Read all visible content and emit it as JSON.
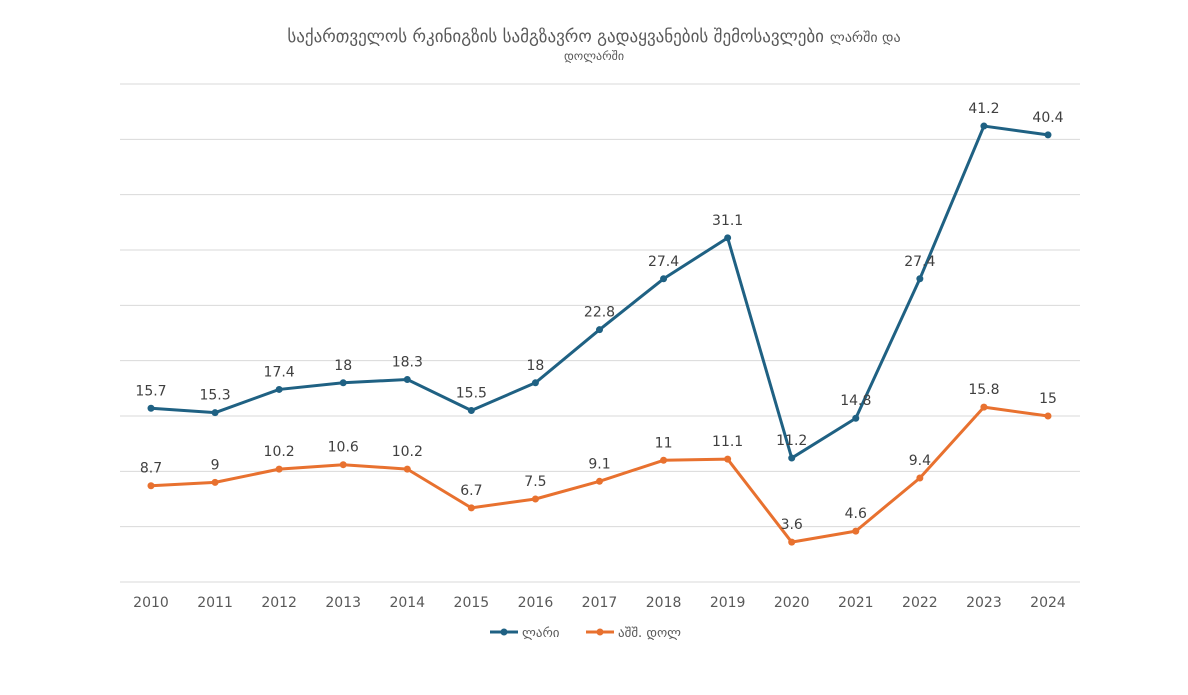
{
  "chart_data": {
    "type": "line",
    "title": "საქართველოს რკინიგზის სამგზავრო გადაყვანების შემოსავლები",
    "title_suffix": "ლარში და",
    "subtitle": "დოლარში",
    "xlabel": "",
    "ylabel": "",
    "ylim": [
      0,
      45
    ],
    "grid": true,
    "legend_position": "bottom",
    "categories": [
      "2010",
      "2011",
      "2012",
      "2013",
      "2014",
      "2015",
      "2016",
      "2017",
      "2018",
      "2019",
      "2020",
      "2021",
      "2022",
      "2023",
      "2024"
    ],
    "series": [
      {
        "name": "ლარი",
        "color": "#1f6183",
        "values": [
          15.7,
          15.3,
          17.4,
          18,
          18.3,
          15.5,
          18,
          22.8,
          27.4,
          31.1,
          11.2,
          14.8,
          27.4,
          41.2,
          40.4
        ],
        "labels": [
          "15.7",
          "15.3",
          "17.4",
          "18",
          "18.3",
          "15.5",
          "18",
          "22.8",
          "27.4",
          "31.1",
          "11.2",
          "14.8",
          "27.4",
          "41.2",
          "40.4"
        ]
      },
      {
        "name": "აშშ. დოლ",
        "color": "#e8712f",
        "values": [
          8.7,
          9,
          10.2,
          10.6,
          10.2,
          6.7,
          7.5,
          9.1,
          11,
          11.1,
          3.6,
          4.6,
          9.4,
          15.8,
          15
        ],
        "labels": [
          "8.7",
          "9",
          "10.2",
          "10.6",
          "10.2",
          "6.7",
          "7.5",
          "9.1",
          "11",
          "11.1",
          "3.6",
          "4.6",
          "9.4",
          "15.8",
          "15"
        ]
      }
    ]
  }
}
